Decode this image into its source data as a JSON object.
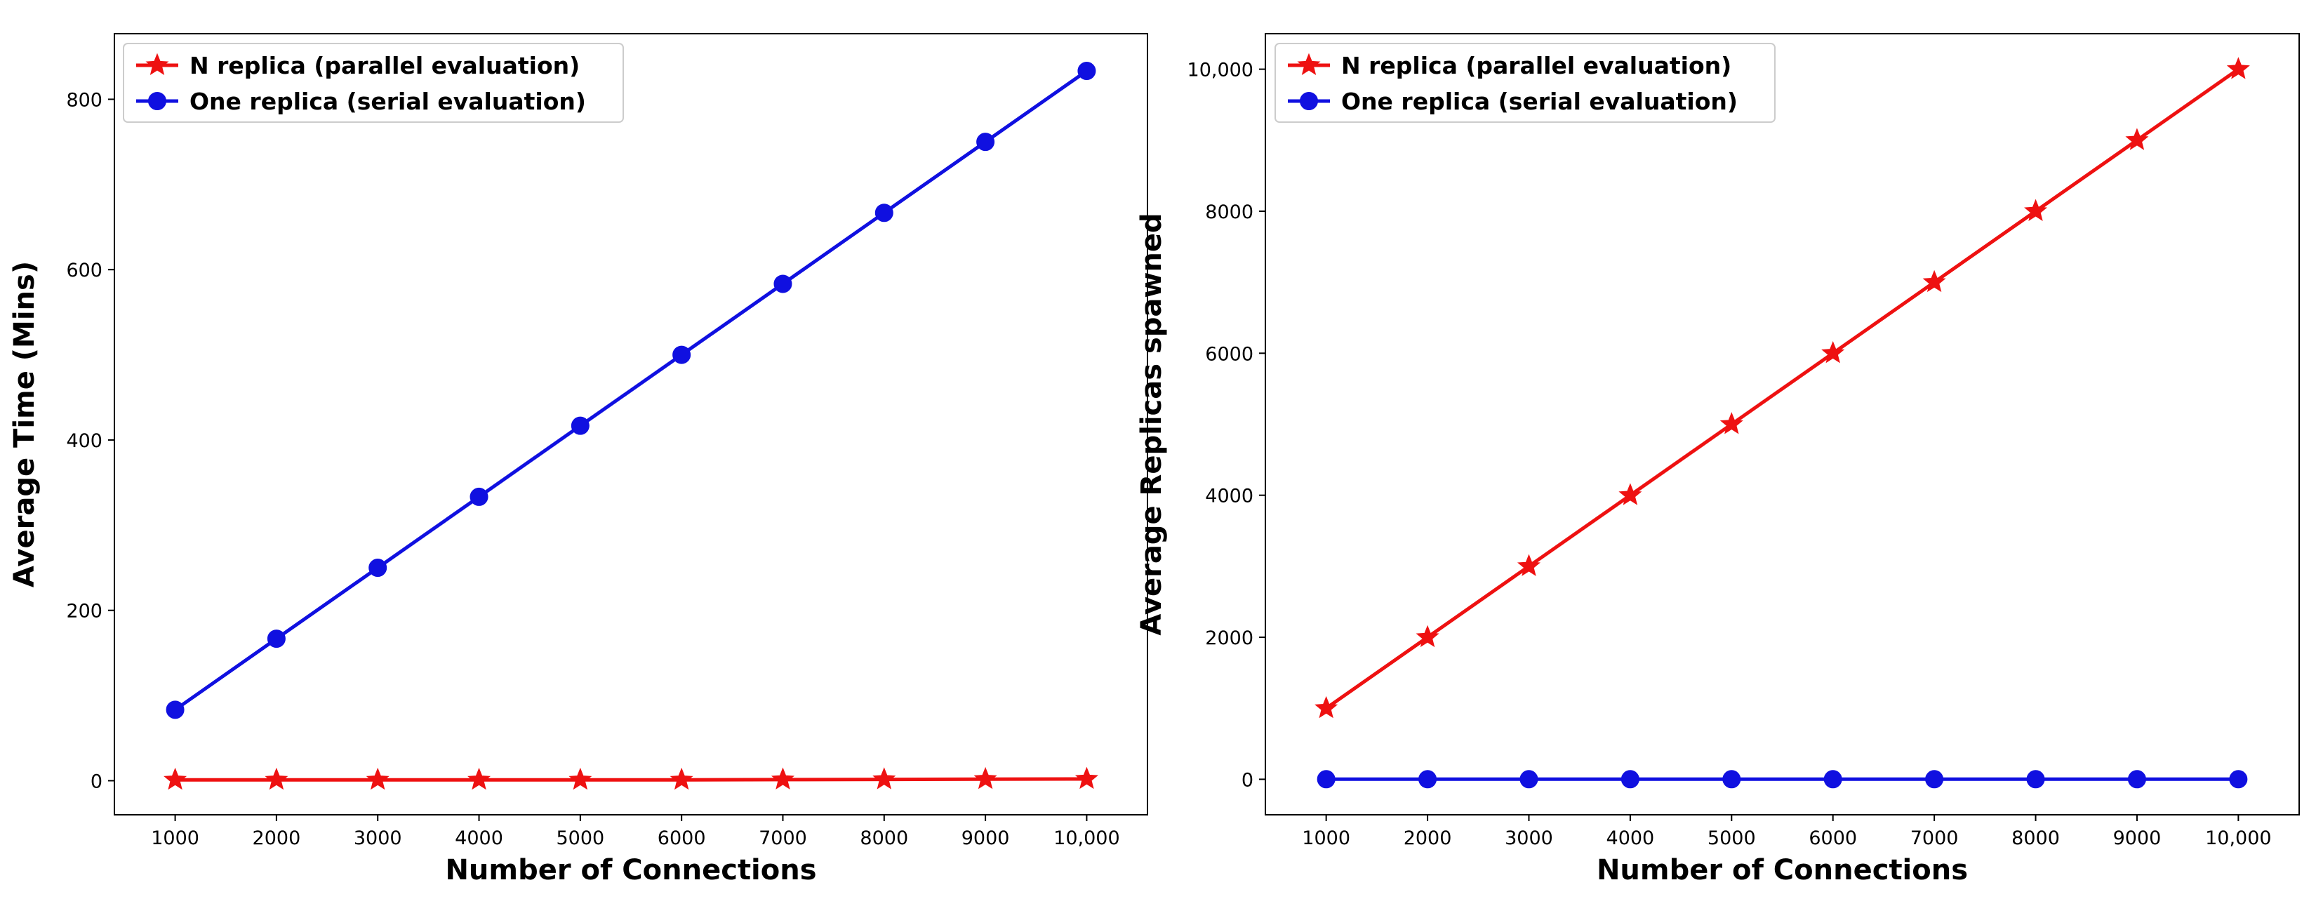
{
  "chart_data": [
    {
      "type": "line",
      "xlabel": "Number of Connections",
      "ylabel": "Average Time (Mins)",
      "xlim": [
        400,
        10600
      ],
      "ylim": [
        -40,
        877
      ],
      "xticks": [
        1000,
        2000,
        3000,
        4000,
        5000,
        6000,
        7000,
        8000,
        9000,
        10000
      ],
      "xtick_labels": [
        "1000",
        "2000",
        "3000",
        "4000",
        "5000",
        "6000",
        "7000",
        "8000",
        "9000",
        "10,000"
      ],
      "yticks": [
        0,
        200,
        400,
        600,
        800
      ],
      "ytick_labels": [
        "0",
        "200",
        "400",
        "600",
        "800"
      ],
      "legend_position": "upper-left",
      "x": [
        1000,
        2000,
        3000,
        4000,
        5000,
        6000,
        7000,
        8000,
        9000,
        10000
      ],
      "series": [
        {
          "name": "N replica (parallel evaluation)",
          "color": "#ee1111",
          "marker": "star",
          "values": [
            1,
            1,
            1,
            1,
            1,
            1,
            1.3,
            1.5,
            1.8,
            2
          ]
        },
        {
          "name": "One replica (serial evaluation)",
          "color": "#1010e0",
          "marker": "circle",
          "values": [
            83.3,
            166.7,
            250,
            333.3,
            416.7,
            500,
            583.3,
            666.7,
            750,
            833.3
          ]
        }
      ]
    },
    {
      "type": "line",
      "xlabel": "Number of Connections",
      "ylabel": "Average Replicas spawned",
      "xlim": [
        400,
        10600
      ],
      "ylim": [
        -500,
        10500
      ],
      "xticks": [
        1000,
        2000,
        3000,
        4000,
        5000,
        6000,
        7000,
        8000,
        9000,
        10000
      ],
      "xtick_labels": [
        "1000",
        "2000",
        "3000",
        "4000",
        "5000",
        "6000",
        "7000",
        "8000",
        "9000",
        "10,000"
      ],
      "yticks": [
        0,
        2000,
        4000,
        6000,
        8000,
        10000
      ],
      "ytick_labels": [
        "0",
        "2000",
        "4000",
        "6000",
        "8000",
        "10,000"
      ],
      "legend_position": "upper-left",
      "x": [
        1000,
        2000,
        3000,
        4000,
        5000,
        6000,
        7000,
        8000,
        9000,
        10000
      ],
      "series": [
        {
          "name": "N replica (parallel evaluation)",
          "color": "#ee1111",
          "marker": "star",
          "values": [
            1000,
            2000,
            3000,
            4000,
            5000,
            6000,
            7000,
            8000,
            9000,
            10000
          ]
        },
        {
          "name": "One replica (serial evaluation)",
          "color": "#1010e0",
          "marker": "circle",
          "values": [
            1,
            1,
            1,
            1,
            1,
            1,
            1,
            1,
            1,
            1
          ]
        }
      ]
    }
  ]
}
